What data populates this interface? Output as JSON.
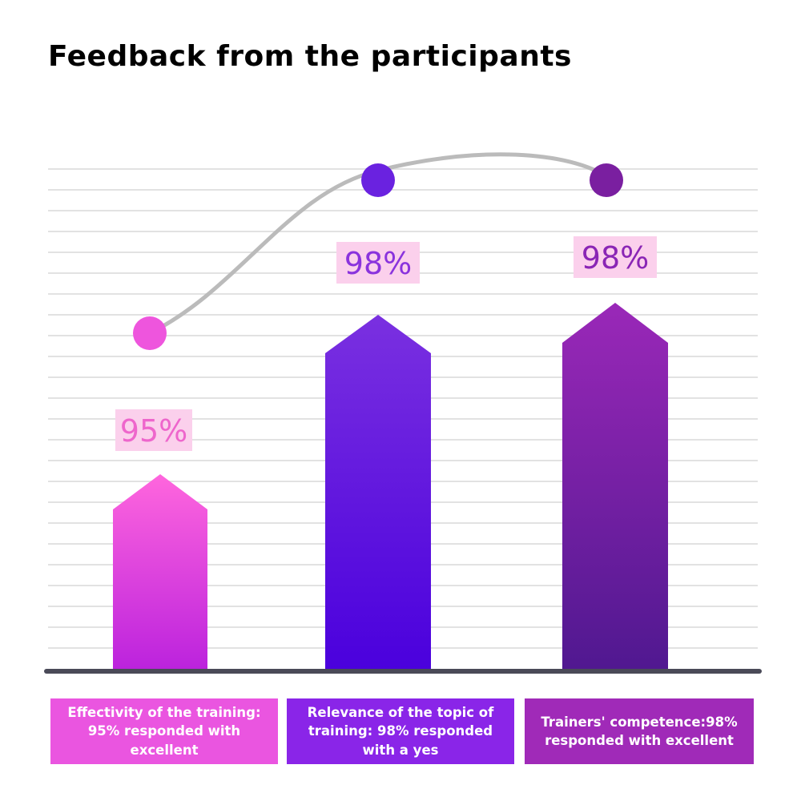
{
  "title": "Feedback from the participants",
  "chart_data": {
    "type": "bar",
    "categories": [
      "Effectivity of the training: 95% responded with excellent",
      "Relevance of the topic of training: 98% responded with a yes",
      "Trainers' competence:98% responded with excellent"
    ],
    "values": [
      95,
      98,
      98
    ],
    "data_labels": [
      "95%",
      "98%",
      "98%"
    ],
    "colors": {
      "bar1": [
        "#ff66dd",
        "#bb22dd"
      ],
      "bar2": [
        "#7a30e0",
        "#4a00dd"
      ],
      "bar3": [
        "#9a28b8",
        "#501890"
      ],
      "dot1": "#ee55dd",
      "dot2": "#6a22e0",
      "dot3": "#7a1fa0",
      "label_bg": "#fbd0ec",
      "label_text1": "#ee66cc",
      "label_text2": "#8a33dd",
      "label_text3": "#8a25b5",
      "curve": "#bbbbbb",
      "grid": "#e2e2e2",
      "baseline": "#4a4a58",
      "cat_bg": [
        "#ea55e0",
        "#8a25e8",
        "#a02ab8"
      ]
    }
  }
}
